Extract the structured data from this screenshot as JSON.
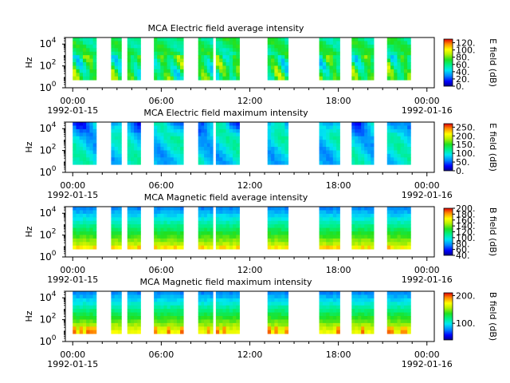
{
  "chart_data": [
    {
      "type": "heatmap",
      "title": "MCA  Electric field average intensity",
      "ylabel": "Hz",
      "y_scale": "log",
      "ylim": [
        1,
        40000
      ],
      "y_ticks": [
        {
          "base": "10",
          "exp": "0"
        },
        {
          "base": "10",
          "exp": "2"
        },
        {
          "base": "10",
          "exp": "4"
        }
      ],
      "x_ticks": [
        "00:00",
        "06:00",
        "12:00",
        "18:00",
        "00:00"
      ],
      "x_dates": [
        "1992-01-15",
        "1992-01-16"
      ],
      "x_range_hours": [
        -0.5,
        24.5
      ],
      "data_intervals_hours": [
        [
          0.0,
          1.6
        ],
        [
          2.6,
          3.3
        ],
        [
          3.7,
          4.6
        ],
        [
          5.5,
          7.5
        ],
        [
          8.5,
          9.5
        ],
        [
          9.7,
          11.3
        ],
        [
          13.2,
          14.6
        ],
        [
          16.7,
          18.1
        ],
        [
          18.9,
          20.4
        ],
        [
          21.3,
          22.9
        ]
      ],
      "colorbar": {
        "label": "E field (dB)",
        "range": [
          0,
          130
        ],
        "ticks": [
          "0.",
          "20.",
          "40.",
          "60.",
          "80.",
          "100.",
          "120."
        ]
      },
      "pattern": "e-avg"
    },
    {
      "type": "heatmap",
      "title": "MCA  Electric field maximum intensity",
      "ylabel": "Hz",
      "y_scale": "log",
      "ylim": [
        1,
        40000
      ],
      "y_ticks": [
        {
          "base": "10",
          "exp": "0"
        },
        {
          "base": "10",
          "exp": "2"
        },
        {
          "base": "10",
          "exp": "4"
        }
      ],
      "x_ticks": [
        "00:00",
        "06:00",
        "12:00",
        "18:00",
        "00:00"
      ],
      "x_dates": [
        "1992-01-15",
        "1992-01-16"
      ],
      "x_range_hours": [
        -0.5,
        24.5
      ],
      "data_intervals_hours": [
        [
          0.0,
          1.6
        ],
        [
          2.6,
          3.3
        ],
        [
          3.7,
          4.6
        ],
        [
          5.5,
          7.5
        ],
        [
          8.5,
          9.5
        ],
        [
          9.7,
          11.3
        ],
        [
          13.2,
          14.6
        ],
        [
          16.7,
          18.1
        ],
        [
          18.9,
          20.4
        ],
        [
          21.3,
          22.9
        ]
      ],
      "colorbar": {
        "label": "E field (dB)",
        "range": [
          0,
          270
        ],
        "ticks": [
          "0.",
          "50.",
          "100.",
          "150.",
          "200.",
          "250."
        ]
      },
      "pattern": "e-max"
    },
    {
      "type": "heatmap",
      "title": "MCA  Magnetic field average intensity",
      "ylabel": "Hz",
      "y_scale": "log",
      "ylim": [
        1,
        40000
      ],
      "y_ticks": [
        {
          "base": "10",
          "exp": "0"
        },
        {
          "base": "10",
          "exp": "2"
        },
        {
          "base": "10",
          "exp": "4"
        }
      ],
      "x_ticks": [
        "00:00",
        "06:00",
        "12:00",
        "18:00",
        "00:00"
      ],
      "x_dates": [
        "1992-01-15",
        "1992-01-16"
      ],
      "x_range_hours": [
        -0.5,
        24.5
      ],
      "data_intervals_hours": [
        [
          0.0,
          1.6
        ],
        [
          2.6,
          3.3
        ],
        [
          3.7,
          4.6
        ],
        [
          5.5,
          7.5
        ],
        [
          8.5,
          9.5
        ],
        [
          9.7,
          11.3
        ],
        [
          13.2,
          14.6
        ],
        [
          16.7,
          18.1
        ],
        [
          18.9,
          20.4
        ],
        [
          21.3,
          22.9
        ]
      ],
      "colorbar": {
        "label": "B field (dB)",
        "range": [
          40,
          200
        ],
        "ticks": [
          "40.",
          "60.",
          "80.",
          "100.",
          "120.",
          "140.",
          "160.",
          "180.",
          "200."
        ]
      },
      "pattern": "b-avg"
    },
    {
      "type": "heatmap",
      "title": "MCA  Magnetic field maximum intensity",
      "ylabel": "Hz",
      "y_scale": "log",
      "ylim": [
        1,
        40000
      ],
      "y_ticks": [
        {
          "base": "10",
          "exp": "0"
        },
        {
          "base": "10",
          "exp": "2"
        },
        {
          "base": "10",
          "exp": "4"
        }
      ],
      "x_ticks": [
        "00:00",
        "06:00",
        "12:00",
        "18:00",
        "00:00"
      ],
      "x_dates": [
        "1992-01-15",
        "1992-01-16"
      ],
      "x_range_hours": [
        -0.5,
        24.5
      ],
      "data_intervals_hours": [
        [
          0.0,
          1.6
        ],
        [
          2.6,
          3.3
        ],
        [
          3.7,
          4.6
        ],
        [
          5.5,
          7.5
        ],
        [
          8.5,
          9.5
        ],
        [
          9.7,
          11.3
        ],
        [
          13.2,
          14.6
        ],
        [
          16.7,
          18.1
        ],
        [
          18.9,
          20.4
        ],
        [
          21.3,
          22.9
        ]
      ],
      "colorbar": {
        "label": "B field (dB)",
        "range": [
          40,
          210
        ],
        "ticks": [
          "100.",
          "200."
        ]
      },
      "pattern": "b-max"
    }
  ]
}
